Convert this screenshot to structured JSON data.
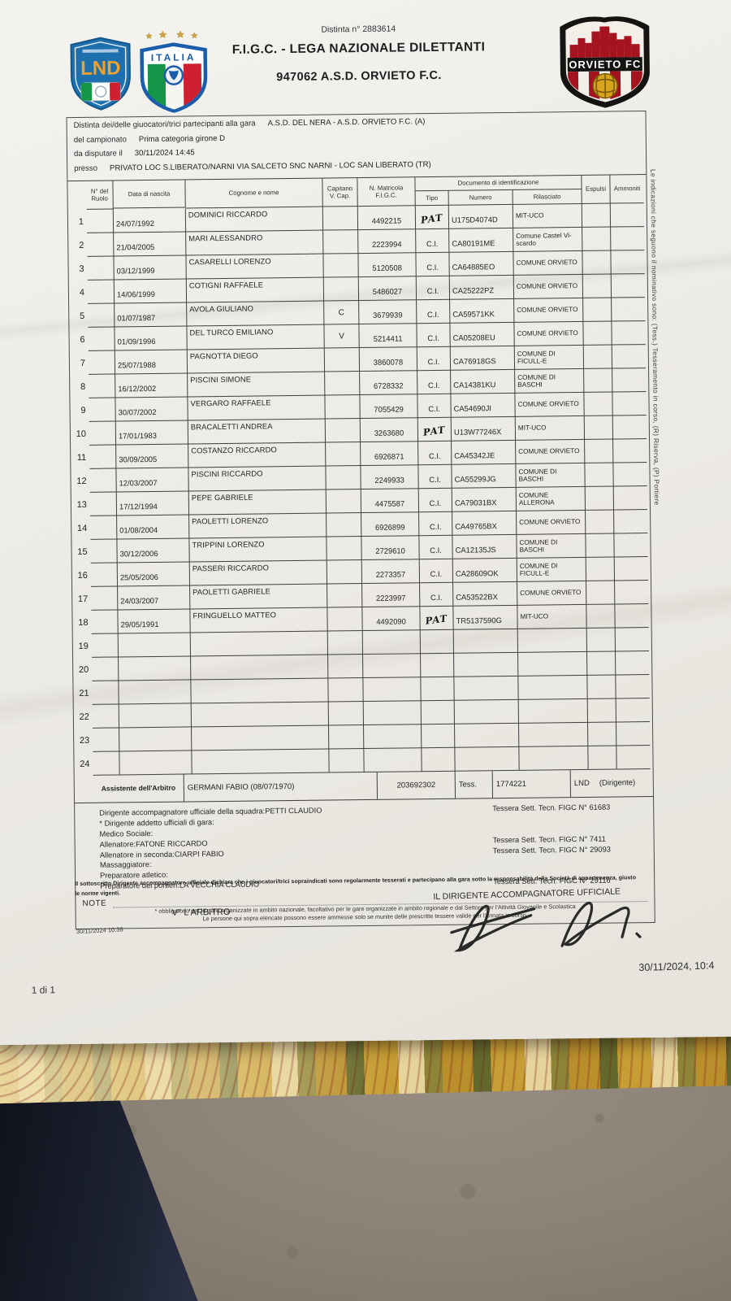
{
  "page": {
    "distinta_no": "Distinta n° 2883614",
    "federation": "F.I.G.C. - LEGA NAZIONALE DILETTANTI",
    "club": "947062 A.S.D. ORVIETO F.C.",
    "page_indicator": "1 di 1",
    "print_timestamp": "30/11/2024, 10:4",
    "timestamp_small": "30/11/2024 10:36",
    "side_note": "Le indicazioni che seguono il nominativo sono: (Tess.) Tesseramento in corso, (R) Riserva, (P) Portiere"
  },
  "logos": {
    "lnd_label": "LND",
    "italia_label": "ITALIA",
    "orvieto_label": "ORVIETO FC"
  },
  "match_info": {
    "line1_label": "Distinta dei/delle giuocatori/trici partecipanti alla gara",
    "line1_value": "A.S.D. DEL NERA - A.S.D. ORVIETO F.C. (A)",
    "line2_label": "del campionato",
    "line2_value": "Prima categoria girone D",
    "line3_label": "da disputare il",
    "line3_value": "30/11/2024 14:45",
    "line4_label": "presso",
    "line4_value": "PRIVATO LOC S.LIBERATO/NARNI VIA SALCETO SNC NARNI - LOC SAN LIBERATO (TR)"
  },
  "table": {
    "headers": {
      "num": "N° del Ruolo",
      "date": "Data di nascita",
      "name": "Cognome e nome",
      "cap": "Capitano V. Cap.",
      "matr": "N. Matricola F.I.G.C.",
      "doc": "Documento di identificazione",
      "tipo": "Tipo",
      "numero": "Numero",
      "ril": "Rilasciato",
      "esp": "Espulsi",
      "amm": "Ammoniti"
    },
    "rows": [
      {
        "n": "1",
        "date": "24/07/1992",
        "name": "DOMINICI RICCARDO",
        "cap": "",
        "matr": "4492215",
        "tipo": "PAT",
        "tipo_handwritten": true,
        "numero": "U175D4074D",
        "ril": "MIT-UCO"
      },
      {
        "n": "2",
        "date": "21/04/2005",
        "name": "MARI ALESSANDRO",
        "cap": "",
        "matr": "2223994",
        "tipo": "C.I.",
        "tipo_handwritten": false,
        "numero": "CA80191ME",
        "ril": "Comune Castel Vi-scardo"
      },
      {
        "n": "3",
        "date": "03/12/1999",
        "name": "CASARELLI LORENZO",
        "cap": "",
        "matr": "5120508",
        "tipo": "C.I.",
        "tipo_handwritten": false,
        "numero": "CA64885EO",
        "ril": "COMUNE ORVIETO"
      },
      {
        "n": "4",
        "date": "14/06/1999",
        "name": "COTIGNI RAFFAELE",
        "cap": "",
        "matr": "5486027",
        "tipo": "C.I.",
        "tipo_handwritten": false,
        "numero": "CA25222PZ",
        "ril": "COMUNE ORVIETO"
      },
      {
        "n": "5",
        "date": "01/07/1987",
        "name": "AVOLA GIULIANO",
        "cap": "C",
        "matr": "3679939",
        "tipo": "C.I.",
        "tipo_handwritten": false,
        "numero": "CA59571KK",
        "ril": "COMUNE ORVIETO"
      },
      {
        "n": "6",
        "date": "01/09/1996",
        "name": "DEL TURCO EMILIANO",
        "cap": "V",
        "matr": "5214411",
        "tipo": "C.I.",
        "tipo_handwritten": false,
        "numero": "CA05208EU",
        "ril": "COMUNE ORVIETO"
      },
      {
        "n": "7",
        "date": "25/07/1988",
        "name": "PAGNOTTA DIEGO",
        "cap": "",
        "matr": "3860078",
        "tipo": "C.I.",
        "tipo_handwritten": false,
        "numero": "CA76918GS",
        "ril": "COMUNE DI FICULL-E"
      },
      {
        "n": "8",
        "date": "16/12/2002",
        "name": "PISCINI SIMONE",
        "cap": "",
        "matr": "6728332",
        "tipo": "C.I.",
        "tipo_handwritten": false,
        "numero": "CA14381KU",
        "ril": "COMUNE DI BASCHI"
      },
      {
        "n": "9",
        "date": "30/07/2002",
        "name": "VERGARO RAFFAELE",
        "cap": "",
        "matr": "7055429",
        "tipo": "C.I.",
        "tipo_handwritten": false,
        "numero": "CA54690JI",
        "ril": "COMUNE ORVIETO"
      },
      {
        "n": "10",
        "date": "17/01/1983",
        "name": "BRACALETTI ANDREA",
        "cap": "",
        "matr": "3263680",
        "tipo": "PAT",
        "tipo_handwritten": true,
        "numero": "U13W77246X",
        "ril": "MIT-UCO"
      },
      {
        "n": "11",
        "date": "30/09/2005",
        "name": "COSTANZO RICCARDO",
        "cap": "",
        "matr": "6926871",
        "tipo": "C.I.",
        "tipo_handwritten": false,
        "numero": "CA45342JE",
        "ril": "COMUNE ORVIETO"
      },
      {
        "n": "12",
        "date": "12/03/2007",
        "name": "PISCINI RICCARDO",
        "cap": "",
        "matr": "2249933",
        "tipo": "C.I.",
        "tipo_handwritten": false,
        "numero": "CA55299JG",
        "ril": "COMUNE DI BASCHI"
      },
      {
        "n": "13",
        "date": "17/12/1994",
        "name": "PEPE GABRIELE",
        "cap": "",
        "matr": "4475587",
        "tipo": "C.I.",
        "tipo_handwritten": false,
        "numero": "CA79031BX",
        "ril": "COMUNE ALLERONA"
      },
      {
        "n": "14",
        "date": "01/08/2004",
        "name": "PAOLETTI LORENZO",
        "cap": "",
        "matr": "6926899",
        "tipo": "C.I.",
        "tipo_handwritten": false,
        "numero": "CA49765BX",
        "ril": "COMUNE ORVIETO"
      },
      {
        "n": "15",
        "date": "30/12/2006",
        "name": "TRIPPINI LORENZO",
        "cap": "",
        "matr": "2729610",
        "tipo": "C.I.",
        "tipo_handwritten": false,
        "numero": "CA12135JS",
        "ril": "COMUNE DI BASCHI"
      },
      {
        "n": "16",
        "date": "25/05/2006",
        "name": "PASSERI RICCARDO",
        "cap": "",
        "matr": "2273357",
        "tipo": "C.I.",
        "tipo_handwritten": false,
        "numero": "CA28609OK",
        "ril": "COMUNE DI FICULL-E"
      },
      {
        "n": "17",
        "date": "24/03/2007",
        "name": "PAOLETTI GABRIELE",
        "cap": "",
        "matr": "2223997",
        "tipo": "C.I.",
        "tipo_handwritten": false,
        "numero": "CA53522BX",
        "ril": "COMUNE ORVIETO"
      },
      {
        "n": "18",
        "date": "29/05/1991",
        "name": "FRINGUELLO MATTEO",
        "cap": "",
        "matr": "4492090",
        "tipo": "PAT",
        "tipo_handwritten": true,
        "numero": "TR5137590G",
        "ril": "MIT-UCO"
      },
      {
        "n": "19",
        "date": "",
        "name": "",
        "cap": "",
        "matr": "",
        "tipo": "",
        "tipo_handwritten": false,
        "numero": "",
        "ril": ""
      },
      {
        "n": "20",
        "date": "",
        "name": "",
        "cap": "",
        "matr": "",
        "tipo": "",
        "tipo_handwritten": false,
        "numero": "",
        "ril": ""
      },
      {
        "n": "21",
        "date": "",
        "name": "",
        "cap": "",
        "matr": "",
        "tipo": "",
        "tipo_handwritten": false,
        "numero": "",
        "ril": ""
      },
      {
        "n": "22",
        "date": "",
        "name": "",
        "cap": "",
        "matr": "",
        "tipo": "",
        "tipo_handwritten": false,
        "numero": "",
        "ril": ""
      },
      {
        "n": "23",
        "date": "",
        "name": "",
        "cap": "",
        "matr": "",
        "tipo": "",
        "tipo_handwritten": false,
        "numero": "",
        "ril": ""
      },
      {
        "n": "24",
        "date": "",
        "name": "",
        "cap": "",
        "matr": "",
        "tipo": "",
        "tipo_handwritten": false,
        "numero": "",
        "ril": ""
      }
    ]
  },
  "assistant": {
    "label": "Assistente dell'Arbitro",
    "name": "GERMANI FABIO (08/07/1970)",
    "matricola": "203692302",
    "tess_label": "Tess.",
    "tess_no": "1774221",
    "org": "LND",
    "role": "(Dirigente)"
  },
  "staff": {
    "lines": [
      {
        "label": "Dirigente accompagnatore ufficiale della squadra:",
        "value": "PETTI CLAUDIO",
        "tessera": "Tessera Sett. Tecn. FIGC N° 61683"
      },
      {
        "label": "* Dirigente addetto ufficiali di gara:",
        "value": "",
        "tessera": ""
      },
      {
        "label": "Medico Sociale:",
        "value": "",
        "tessera": ""
      },
      {
        "label": "Allenatore:",
        "value": "FATONE RICCARDO",
        "tessera": "Tessera Sett. Tecn. FIGC N° 7411"
      },
      {
        "label": "Allenatore in seconda:",
        "value": "CIARPI FABIO",
        "tessera": "Tessera Sett. Tecn. FIGC N° 29093"
      },
      {
        "label": "Massaggiatore:",
        "value": "",
        "tessera": ""
      },
      {
        "label": "Preparatore atletico:",
        "value": "",
        "tessera": ""
      },
      {
        "label": "Preparatore dei portieri:",
        "value": "LA VECCHIA CLAUDIO",
        "tessera": "Tessera Sett. Tecn. FIGC N° 29116"
      }
    ]
  },
  "note": {
    "label": "NOTE",
    "footnote1": "* obbligatorio per le gare organizzate in ambito nazionale, facoltativo per le gare organizzate in ambito regionale e dal Settore per l'Attività Giovanile e Scolastica",
    "footnote2": "Le persone qui sopra elencate possono essere ammesse solo se munite delle prescritte tessere valide per l'annata in corso.",
    "declaration_line1": "Il sottoscritto Dirigente accompagnatore ufficiale dichiara che i giuocatori/trici sopraindicati sono regolarmente tesserati e partecipano alla gara sotto la responsabilità della Società di appartenenza, giusto",
    "declaration_line2": "le norme vigenti.",
    "arbitro_label": "V° L'ARBITRO",
    "dirigente_label": "IL DIRIGENTE ACCOMPAGNATORE UFFICIALE"
  }
}
